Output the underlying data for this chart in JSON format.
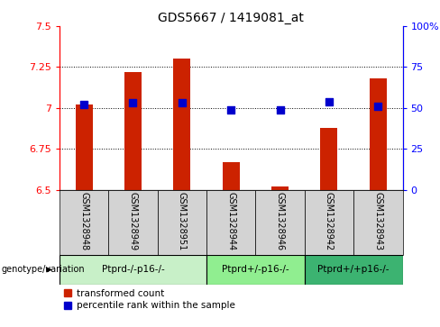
{
  "title": "GDS5667 / 1419081_at",
  "samples": [
    "GSM1328948",
    "GSM1328949",
    "GSM1328951",
    "GSM1328944",
    "GSM1328946",
    "GSM1328942",
    "GSM1328943"
  ],
  "red_values": [
    7.02,
    7.22,
    7.3,
    6.67,
    6.52,
    6.88,
    7.18
  ],
  "blue_values": [
    52,
    53,
    53,
    49,
    49,
    54,
    51
  ],
  "groups": [
    {
      "label": "Ptprd-/-p16-/-",
      "samples": [
        "GSM1328948",
        "GSM1328949",
        "GSM1328951"
      ],
      "color": "#c8f0c8"
    },
    {
      "label": "Ptprd+/-p16-/-",
      "samples": [
        "GSM1328944",
        "GSM1328946"
      ],
      "color": "#90ee90"
    },
    {
      "label": "Ptprd+/+p16-/-",
      "samples": [
        "GSM1328942",
        "GSM1328943"
      ],
      "color": "#3cb371"
    }
  ],
  "ylim_left": [
    6.5,
    7.5
  ],
  "ylim_right": [
    0,
    100
  ],
  "yticks_left": [
    6.5,
    6.75,
    7.0,
    7.25,
    7.5
  ],
  "yticks_right": [
    0,
    25,
    50,
    75,
    100
  ],
  "ytick_labels_left": [
    "6.5",
    "6.75",
    "7",
    "7.25",
    "7.5"
  ],
  "ytick_labels_right": [
    "0",
    "25",
    "50",
    "75",
    "100%"
  ],
  "bar_bottom": 6.5,
  "bar_color": "#cc2200",
  "dot_color": "#0000cc",
  "dot_size": 40,
  "bar_width": 0.35,
  "legend_red": "transformed count",
  "legend_blue": "percentile rank within the sample",
  "genotype_label": "genotype/variation",
  "grid_lines": [
    6.75,
    7.0,
    7.25
  ],
  "sample_bg": "#d3d3d3"
}
